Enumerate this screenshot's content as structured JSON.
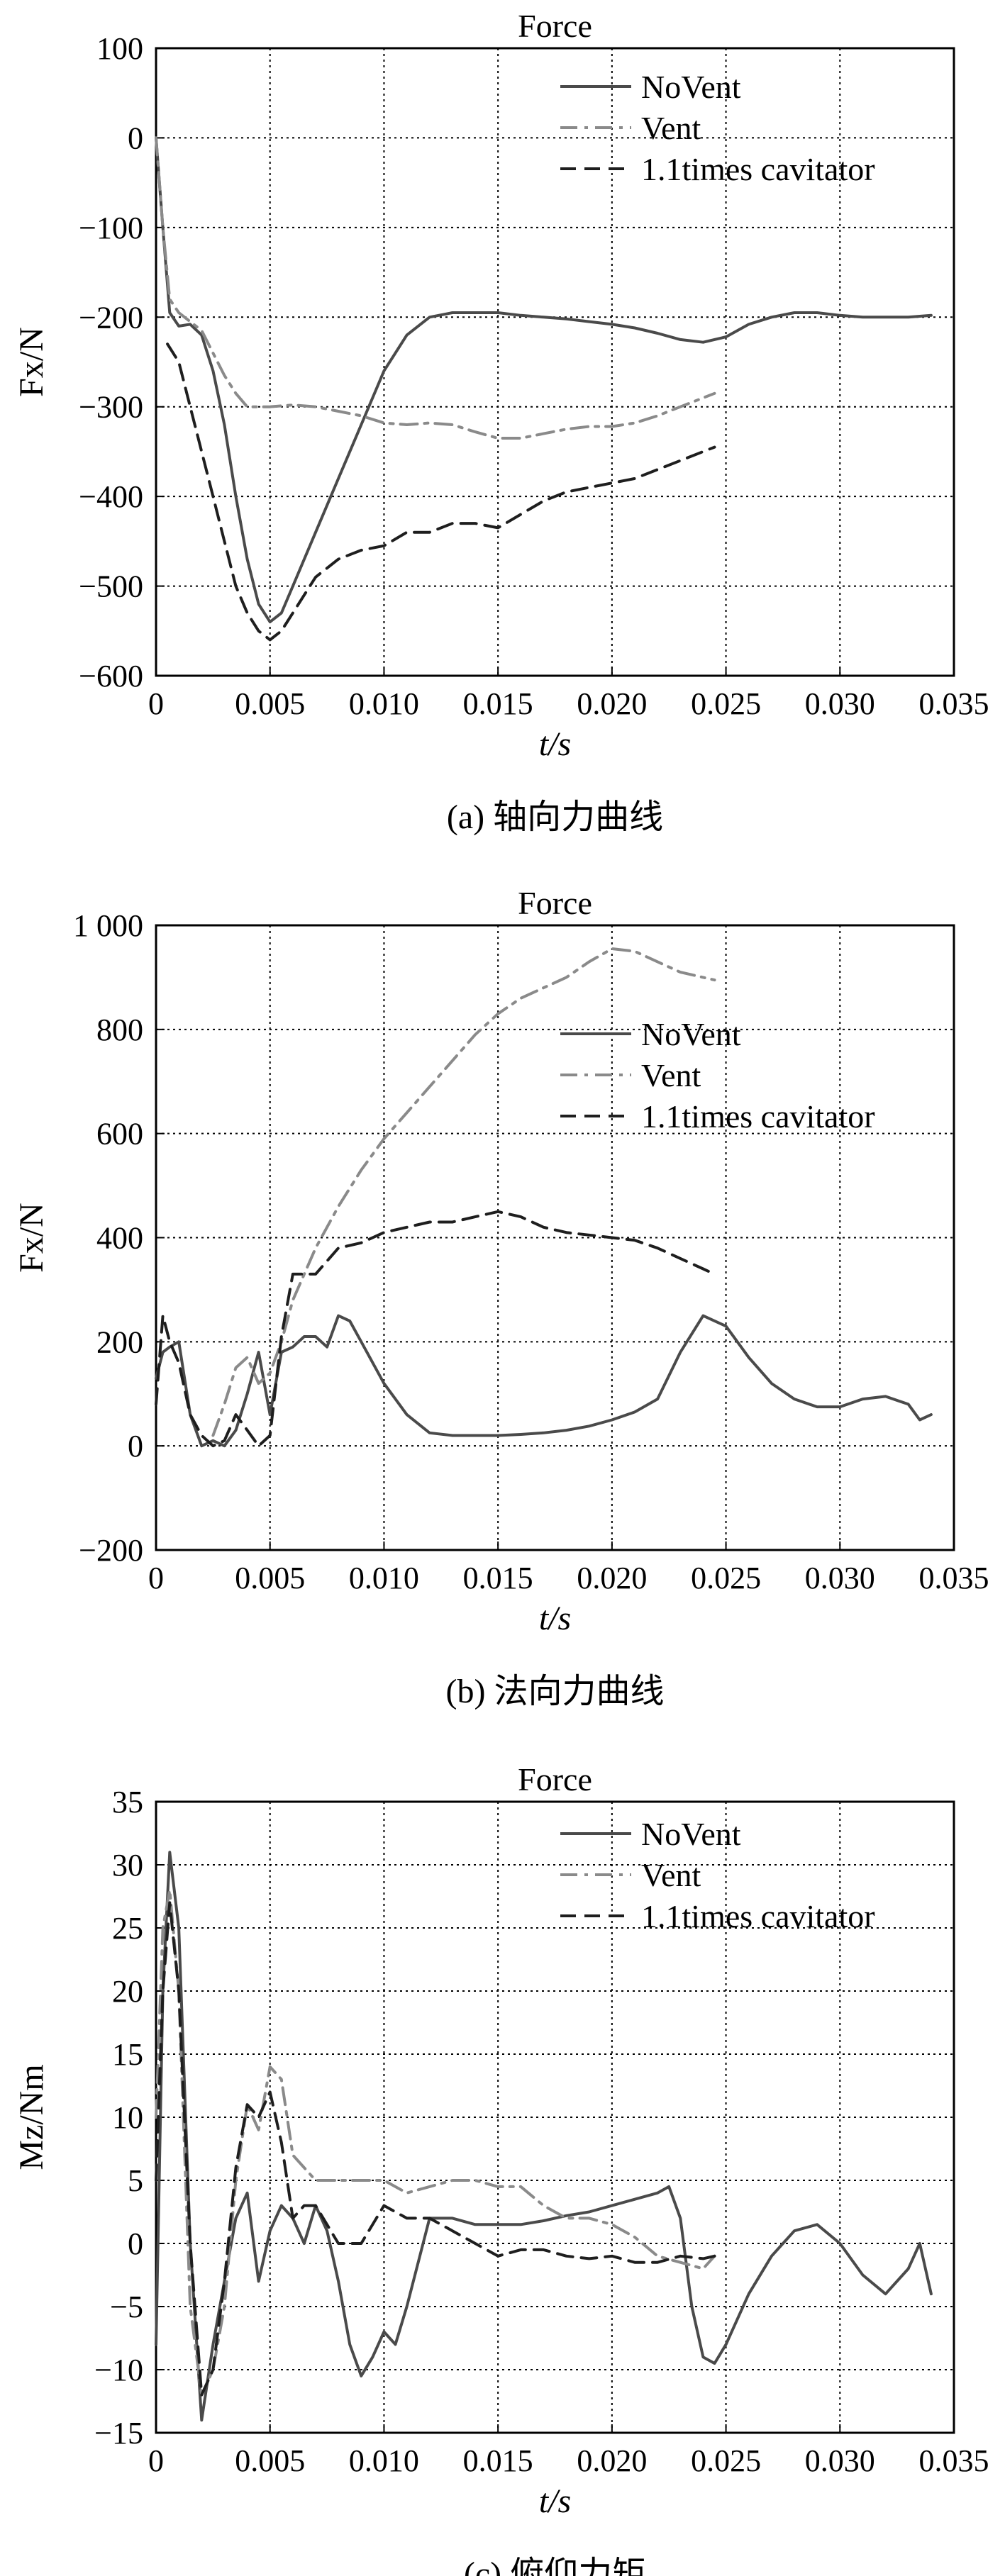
{
  "chart_data": [
    {
      "type": "line",
      "title": "Force",
      "xlabel": "t/s",
      "ylabel": "Fx/N",
      "caption": "(a) 轴向力曲线",
      "xlim": [
        0,
        0.035
      ],
      "ylim": [
        -600,
        100
      ],
      "xticks": [
        0,
        0.005,
        0.01,
        0.015,
        0.02,
        0.025,
        0.03,
        0.035
      ],
      "xtick_labels": [
        "0",
        "0.005",
        "0.010",
        "0.015",
        "0.020",
        "0.025",
        "0.030",
        "0.035"
      ],
      "yticks": [
        -600,
        -500,
        -400,
        -300,
        -200,
        -100,
        0,
        100
      ],
      "ytick_labels": [
        "−600",
        "−500",
        "−400",
        "−300",
        "−200",
        "−100",
        "0",
        "100"
      ],
      "grid": true,
      "legend_position": "top-right",
      "series": [
        {
          "name": "NoVent",
          "style": "solid",
          "color": "#4a4a4a",
          "x": [
            0,
            0.0003,
            0.0006,
            0.001,
            0.0015,
            0.002,
            0.0025,
            0.003,
            0.0035,
            0.004,
            0.0045,
            0.005,
            0.0055,
            0.006,
            0.007,
            0.008,
            0.009,
            0.01,
            0.011,
            0.012,
            0.013,
            0.014,
            0.015,
            0.016,
            0.017,
            0.018,
            0.019,
            0.02,
            0.021,
            0.022,
            0.023,
            0.024,
            0.025,
            0.026,
            0.027,
            0.028,
            0.029,
            0.03,
            0.031,
            0.032,
            0.033,
            0.034
          ],
          "y": [
            0,
            -100,
            -195,
            -210,
            -208,
            -220,
            -260,
            -320,
            -400,
            -470,
            -520,
            -540,
            -530,
            -500,
            -440,
            -380,
            -320,
            -260,
            -220,
            -200,
            -195,
            -195,
            -195,
            -198,
            -200,
            -202,
            -205,
            -208,
            -212,
            -218,
            -225,
            -228,
            -222,
            -208,
            -200,
            -195,
            -195,
            -198,
            -200,
            -200,
            -200,
            -198
          ]
        },
        {
          "name": "Vent",
          "style": "dashdot",
          "color": "#8a8a8a",
          "x": [
            0,
            0.0003,
            0.0006,
            0.001,
            0.0015,
            0.002,
            0.0025,
            0.003,
            0.0035,
            0.004,
            0.005,
            0.006,
            0.007,
            0.008,
            0.009,
            0.01,
            0.011,
            0.012,
            0.013,
            0.014,
            0.015,
            0.016,
            0.017,
            0.018,
            0.019,
            0.02,
            0.021,
            0.022,
            0.023,
            0.024,
            0.0245
          ],
          "y": [
            0,
            -100,
            -180,
            -195,
            -205,
            -215,
            -240,
            -265,
            -285,
            -300,
            -300,
            -298,
            -300,
            -305,
            -310,
            -318,
            -320,
            -318,
            -320,
            -328,
            -335,
            -335,
            -330,
            -325,
            -322,
            -322,
            -318,
            -310,
            -300,
            -290,
            -285
          ]
        },
        {
          "name": "1.1times cavitator",
          "style": "dashed",
          "color": "#1e1e1e",
          "x": [
            0.0005,
            0.001,
            0.0015,
            0.002,
            0.0025,
            0.003,
            0.0035,
            0.004,
            0.0045,
            0.005,
            0.0055,
            0.006,
            0.007,
            0.008,
            0.009,
            0.01,
            0.011,
            0.012,
            0.013,
            0.014,
            0.015,
            0.016,
            0.017,
            0.018,
            0.019,
            0.02,
            0.021,
            0.022,
            0.023,
            0.024,
            0.0245
          ],
          "y": [
            -230,
            -250,
            -300,
            -350,
            -400,
            -450,
            -500,
            -530,
            -550,
            -560,
            -550,
            -530,
            -490,
            -470,
            -460,
            -455,
            -440,
            -440,
            -430,
            -430,
            -435,
            -420,
            -405,
            -395,
            -390,
            -385,
            -380,
            -370,
            -360,
            -350,
            -345
          ]
        }
      ]
    },
    {
      "type": "line",
      "title": "Force",
      "xlabel": "t/s",
      "ylabel": "Fx/N",
      "caption": "(b) 法向力曲线",
      "xlim": [
        0,
        0.035
      ],
      "ylim": [
        -200,
        1000
      ],
      "xticks": [
        0,
        0.005,
        0.01,
        0.015,
        0.02,
        0.025,
        0.03,
        0.035
      ],
      "xtick_labels": [
        "0",
        "0.005",
        "0.010",
        "0.015",
        "0.020",
        "0.025",
        "0.030",
        "0.035"
      ],
      "yticks": [
        -200,
        0,
        200,
        400,
        600,
        800,
        1000
      ],
      "ytick_labels": [
        "−200",
        "0",
        "200",
        "400",
        "600",
        "800",
        "1 000"
      ],
      "grid": true,
      "legend_position": "right",
      "series": [
        {
          "name": "NoVent",
          "style": "solid",
          "color": "#4a4a4a",
          "x": [
            0,
            0.0003,
            0.0006,
            0.001,
            0.0015,
            0.002,
            0.0025,
            0.003,
            0.0035,
            0.004,
            0.0045,
            0.005,
            0.0055,
            0.006,
            0.0065,
            0.007,
            0.0075,
            0.008,
            0.0085,
            0.009,
            0.01,
            0.011,
            0.012,
            0.013,
            0.014,
            0.015,
            0.016,
            0.017,
            0.018,
            0.019,
            0.02,
            0.021,
            0.022,
            0.023,
            0.024,
            0.025,
            0.026,
            0.027,
            0.028,
            0.029,
            0.03,
            0.031,
            0.032,
            0.033,
            0.0335,
            0.034
          ],
          "y": [
            130,
            180,
            190,
            200,
            60,
            0,
            10,
            0,
            30,
            100,
            180,
            60,
            180,
            190,
            210,
            210,
            190,
            250,
            240,
            200,
            120,
            60,
            25,
            20,
            20,
            20,
            22,
            25,
            30,
            38,
            50,
            65,
            90,
            180,
            250,
            230,
            170,
            120,
            90,
            75,
            75,
            90,
            95,
            80,
            50,
            60
          ]
        },
        {
          "name": "Vent",
          "style": "dashdot",
          "color": "#8a8a8a",
          "x": [
            0.0025,
            0.003,
            0.0035,
            0.004,
            0.0045,
            0.005,
            0.0055,
            0.006,
            0.007,
            0.008,
            0.009,
            0.01,
            0.011,
            0.012,
            0.013,
            0.014,
            0.015,
            0.016,
            0.017,
            0.018,
            0.019,
            0.02,
            0.021,
            0.022,
            0.023,
            0.024,
            0.0245
          ],
          "y": [
            20,
            80,
            150,
            170,
            120,
            140,
            200,
            280,
            380,
            460,
            530,
            590,
            640,
            690,
            740,
            790,
            830,
            860,
            880,
            900,
            930,
            955,
            950,
            930,
            910,
            900,
            895
          ]
        },
        {
          "name": "1.1times cavitator",
          "style": "dashed",
          "color": "#1e1e1e",
          "x": [
            0,
            0.0003,
            0.0006,
            0.001,
            0.0015,
            0.002,
            0.0025,
            0.003,
            0.0035,
            0.004,
            0.0045,
            0.005,
            0.0055,
            0.006,
            0.007,
            0.008,
            0.009,
            0.01,
            0.011,
            0.012,
            0.013,
            0.014,
            0.015,
            0.016,
            0.017,
            0.018,
            0.019,
            0.02,
            0.021,
            0.022,
            0.023,
            0.024,
            0.0245
          ],
          "y": [
            80,
            250,
            200,
            160,
            60,
            20,
            0,
            10,
            60,
            30,
            0,
            20,
            210,
            330,
            330,
            380,
            390,
            410,
            420,
            430,
            430,
            440,
            450,
            440,
            420,
            410,
            405,
            400,
            395,
            380,
            360,
            340,
            330
          ]
        }
      ]
    },
    {
      "type": "line",
      "title": "Force",
      "xlabel": "t/s",
      "ylabel": "Mz/Nm",
      "caption": "(c) 俯仰力矩",
      "xlim": [
        0,
        0.035
      ],
      "ylim": [
        -15,
        35
      ],
      "xticks": [
        0,
        0.005,
        0.01,
        0.015,
        0.02,
        0.025,
        0.03,
        0.035
      ],
      "xtick_labels": [
        "0",
        "0.005",
        "0.010",
        "0.015",
        "0.020",
        "0.025",
        "0.030",
        "0.035"
      ],
      "yticks": [
        -15,
        -10,
        -5,
        0,
        5,
        10,
        15,
        20,
        25,
        30,
        35
      ],
      "ytick_labels": [
        "−15",
        "−10",
        "−5",
        "0",
        "5",
        "10",
        "15",
        "20",
        "25",
        "30",
        "35"
      ],
      "grid": true,
      "legend_position": "top-right",
      "series": [
        {
          "name": "NoVent",
          "style": "solid",
          "color": "#4a4a4a",
          "x": [
            0,
            0.0003,
            0.0006,
            0.001,
            0.0015,
            0.002,
            0.0025,
            0.003,
            0.0035,
            0.004,
            0.0045,
            0.005,
            0.0055,
            0.006,
            0.0065,
            0.007,
            0.0075,
            0.008,
            0.0085,
            0.009,
            0.0095,
            0.01,
            0.0105,
            0.011,
            0.012,
            0.013,
            0.014,
            0.015,
            0.016,
            0.017,
            0.018,
            0.019,
            0.02,
            0.021,
            0.022,
            0.0225,
            0.023,
            0.0235,
            0.024,
            0.0245,
            0.025,
            0.026,
            0.027,
            0.028,
            0.029,
            0.03,
            0.031,
            0.032,
            0.033,
            0.0335,
            0.034
          ],
          "y": [
            -8,
            20,
            31,
            25,
            0,
            -14,
            -8,
            -3,
            2,
            4,
            -3,
            1,
            3,
            2,
            0,
            3,
            1,
            -3,
            -8,
            -10.5,
            -9,
            -7,
            -8,
            -5,
            2,
            2,
            1.5,
            1.5,
            1.5,
            1.8,
            2.2,
            2.5,
            3,
            3.5,
            4,
            4.5,
            2,
            -5,
            -9,
            -9.5,
            -8,
            -4,
            -1,
            1,
            1.5,
            0,
            -2.5,
            -4,
            -2,
            0,
            -4
          ]
        },
        {
          "name": "Vent",
          "style": "dashdot",
          "color": "#8a8a8a",
          "x": [
            0,
            0.0003,
            0.0006,
            0.001,
            0.0015,
            0.002,
            0.0025,
            0.003,
            0.0035,
            0.004,
            0.0045,
            0.005,
            0.0055,
            0.006,
            0.007,
            0.008,
            0.009,
            0.01,
            0.011,
            0.012,
            0.013,
            0.014,
            0.015,
            0.016,
            0.017,
            0.018,
            0.019,
            0.02,
            0.021,
            0.022,
            0.023,
            0.024,
            0.0245
          ],
          "y": [
            10,
            25,
            28,
            20,
            -5,
            -12,
            -10,
            -5,
            5,
            11,
            9,
            14,
            13,
            7,
            5,
            5,
            5,
            5,
            4,
            4.5,
            5,
            5,
            4.5,
            4.5,
            3,
            2,
            2,
            1.5,
            0.5,
            -1,
            -1.5,
            -2,
            -1
          ]
        },
        {
          "name": "1.1times cavitator",
          "style": "dashed",
          "color": "#1e1e1e",
          "x": [
            0,
            0.0003,
            0.0006,
            0.001,
            0.0015,
            0.002,
            0.0025,
            0.003,
            0.0035,
            0.004,
            0.0045,
            0.005,
            0.0055,
            0.006,
            0.0065,
            0.007,
            0.008,
            0.009,
            0.01,
            0.011,
            0.012,
            0.013,
            0.014,
            0.015,
            0.016,
            0.017,
            0.018,
            0.019,
            0.02,
            0.021,
            0.022,
            0.023,
            0.024,
            0.0245
          ],
          "y": [
            5,
            20,
            27,
            20,
            0,
            -12,
            -10,
            -3,
            6,
            11,
            10,
            12,
            8,
            2,
            3,
            3,
            0,
            0,
            3,
            2,
            2,
            1,
            0,
            -1,
            -0.5,
            -0.5,
            -1,
            -1.2,
            -1,
            -1.5,
            -1.5,
            -1,
            -1.2,
            -1
          ]
        }
      ]
    }
  ]
}
